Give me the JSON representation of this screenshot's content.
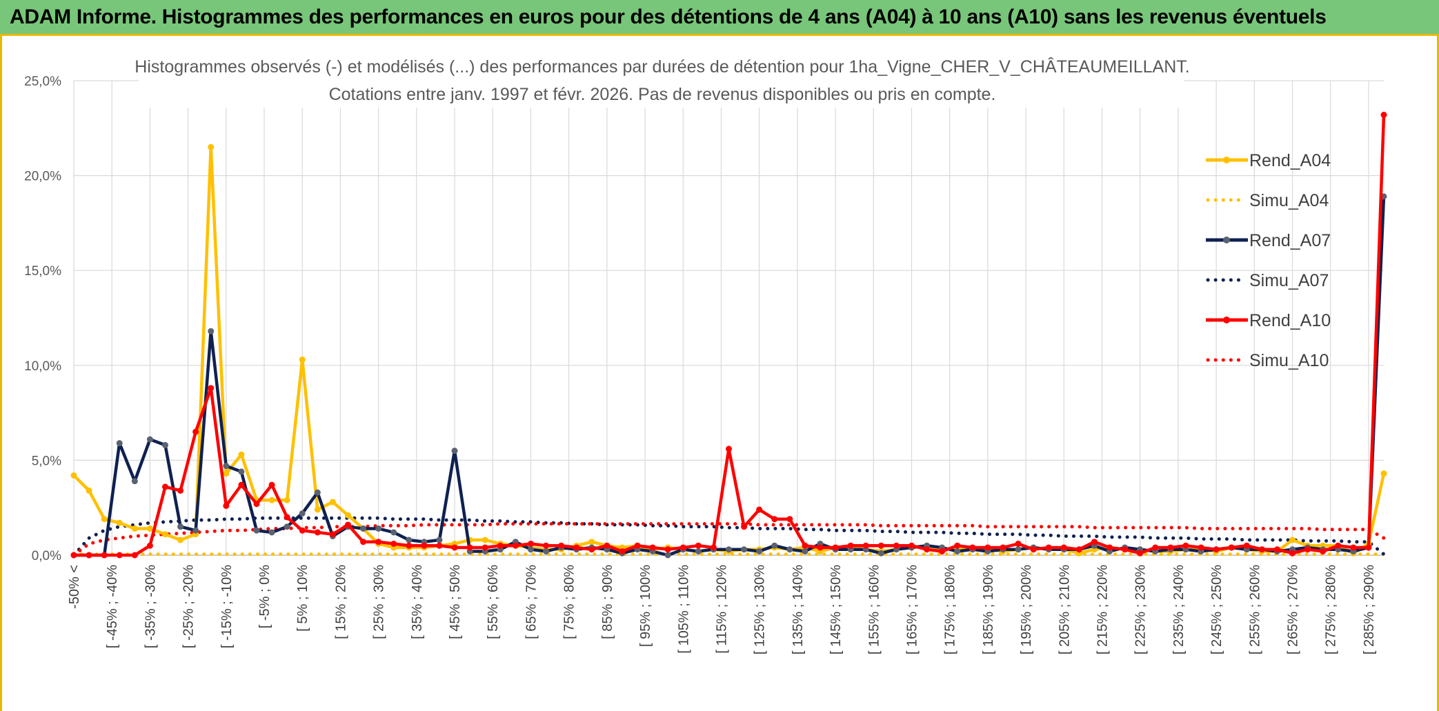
{
  "header": {
    "title": "ADAM Informe. Histogrammes des performances en euros pour des détentions de 4 ans (A04) à 10 ans (A10) sans les revenus éventuels"
  },
  "colors": {
    "header_bg": "#78c679",
    "border_accent": "#e6b800",
    "rend_a04": "#ffc000",
    "simu_a04": "#ffc000",
    "rend_a07": "#0f2150",
    "simu_a07": "#0f2150",
    "rend_a10": "#ff0000",
    "simu_a10": "#ff0000"
  },
  "chart_data": {
    "type": "line",
    "title": "Histogrammes observés (-) et modélisés (...) des performances par durées de détention pour 1ha_Vigne_CHER_V_CHÂTEAUMEILLANT.",
    "subtitle": "Cotations entre janv. 1997 et févr. 2026. Pas de revenus disponibles ou pris en compte.",
    "xlabel": "",
    "ylabel": "",
    "ylim": [
      0,
      25
    ],
    "y_ticks": [
      "0,0%",
      "5,0%",
      "10,0%",
      "15,0%",
      "20,0%",
      "25,0%"
    ],
    "grid": true,
    "legend_position": "right",
    "x_tick_labels": [
      "-50% <",
      "[ -45% ; -40%",
      "[ -35% ; -30%",
      "[ -25% ; -20%",
      "[ -15% ; -10%",
      "[ -5% ; 0%",
      "[ 5% ; 10%",
      "[ 15% ; 20%",
      "[ 25% ; 30%",
      "[ 35% ; 40%",
      "[ 45% ; 50%",
      "[ 55% ; 60%",
      "[ 65% ; 70%",
      "[ 75% ; 80%",
      "[ 85% ; 90%",
      "[ 95% ; 100%",
      "[ 105% ; 110%",
      "[ 115% ; 120%",
      "[ 125% ; 130%",
      "[ 135% ; 140%",
      "[ 145% ; 150%",
      "[ 155% ; 160%",
      "[ 165% ; 170%",
      "[ 175% ; 180%",
      "[ 185% ; 190%",
      "[ 195% ; 200%",
      "[ 205% ; 210%",
      "[ 215% ; 220%",
      "[ 225% ; 230%",
      "[ 235% ; 240%",
      "[ 245% ; 250%",
      "[ 255% ; 260%",
      "[ 265% ; 270%",
      "[ 275% ; 280%",
      "[ 285% ; 290%"
    ],
    "series": [
      {
        "name": "Rend_A04",
        "style": "solid",
        "color": "#ffc000",
        "values": [
          4.2,
          3.4,
          1.9,
          1.7,
          1.4,
          1.4,
          1.1,
          0.8,
          1.1,
          21.5,
          4.3,
          5.3,
          2.9,
          2.9,
          2.9,
          10.3,
          2.4,
          2.8,
          2.1,
          1.4,
          0.6,
          0.4,
          0.4,
          0.4,
          0.5,
          0.6,
          0.8,
          0.8,
          0.6,
          0.5,
          0.4,
          0.3,
          0.3,
          0.5,
          0.7,
          0.5,
          0.4,
          0.5,
          0.3,
          0.4,
          0.3,
          0.2,
          0.3,
          0.2,
          0.3,
          0.3,
          0.4,
          0.3,
          0.4,
          0.2,
          0.4,
          0.4,
          0.3,
          0.2,
          0.3,
          0.4,
          0.5,
          0.3,
          0.4,
          0.3,
          0.3,
          0.2,
          0.3,
          0.4,
          0.3,
          0.3,
          0.1,
          0.3,
          0.4,
          0.3,
          0.3,
          0.2,
          0.2,
          0.3,
          0.3,
          0.2,
          0.4,
          0.3,
          0.2,
          0.2,
          0.8,
          0.5,
          0.5,
          0.5,
          0.1,
          0.6,
          4.3
        ]
      },
      {
        "name": "Simu_A04",
        "style": "dotted",
        "color": "#ffc000",
        "values": [
          0.05,
          0.05,
          0.05,
          0.05,
          0.05,
          0.05,
          0.05,
          0.05,
          0.05,
          0.05,
          0.05,
          0.05,
          0.05,
          0.05,
          0.05,
          0.05,
          0.05,
          0.05,
          0.05,
          0.05,
          0.05,
          0.05,
          0.05,
          0.05,
          0.05,
          0.05,
          0.05,
          0.05,
          0.05,
          0.05,
          0.05,
          0.05,
          0.05,
          0.05,
          0.05,
          0.05,
          0.05,
          0.05,
          0.05,
          0.05,
          0.05,
          0.05,
          0.05,
          0.05,
          0.05,
          0.05,
          0.05,
          0.05,
          0.05,
          0.05,
          0.05,
          0.05,
          0.05,
          0.05,
          0.05,
          0.05,
          0.05,
          0.05,
          0.05,
          0.05,
          0.05,
          0.05,
          0.05,
          0.05,
          0.05,
          0.05,
          0.05,
          0.05,
          0.05,
          0.05,
          0.05,
          0.05,
          0.05,
          0.05,
          0.05,
          0.05,
          0.05,
          0.05,
          0.05,
          0.05,
          0.05,
          0.05,
          0.05,
          0.05,
          0.05,
          0.05,
          0.05
        ]
      },
      {
        "name": "Rend_A07",
        "style": "solid",
        "color": "#0f2150",
        "values": [
          0.0,
          0.0,
          0.0,
          5.9,
          3.9,
          6.1,
          5.8,
          1.5,
          1.3,
          11.8,
          4.7,
          4.4,
          1.3,
          1.2,
          1.5,
          2.2,
          3.3,
          1.0,
          1.5,
          1.4,
          1.4,
          1.2,
          0.8,
          0.7,
          0.8,
          5.5,
          0.2,
          0.2,
          0.3,
          0.7,
          0.3,
          0.2,
          0.4,
          0.3,
          0.4,
          0.3,
          0.1,
          0.3,
          0.2,
          0.0,
          0.3,
          0.2,
          0.3,
          0.3,
          0.3,
          0.2,
          0.5,
          0.3,
          0.2,
          0.6,
          0.3,
          0.3,
          0.3,
          0.1,
          0.3,
          0.4,
          0.5,
          0.4,
          0.2,
          0.3,
          0.2,
          0.3,
          0.3,
          0.4,
          0.3,
          0.3,
          0.3,
          0.5,
          0.2,
          0.4,
          0.3,
          0.2,
          0.3,
          0.3,
          0.2,
          0.3,
          0.4,
          0.3,
          0.3,
          0.2,
          0.3,
          0.4,
          0.3,
          0.3,
          0.2,
          0.4,
          18.9
        ]
      },
      {
        "name": "Simu_A07",
        "style": "dotted",
        "color": "#0f2150",
        "values": [
          0.0,
          0.9,
          1.3,
          1.5,
          1.6,
          1.7,
          1.75,
          1.8,
          1.85,
          1.85,
          1.9,
          1.9,
          1.95,
          1.95,
          1.95,
          1.95,
          1.95,
          1.95,
          1.95,
          1.95,
          1.95,
          1.9,
          1.9,
          1.9,
          1.85,
          1.85,
          1.85,
          1.8,
          1.8,
          1.75,
          1.75,
          1.7,
          1.7,
          1.65,
          1.65,
          1.6,
          1.6,
          1.6,
          1.55,
          1.55,
          1.5,
          1.5,
          1.5,
          1.45,
          1.45,
          1.4,
          1.4,
          1.4,
          1.35,
          1.35,
          1.3,
          1.3,
          1.3,
          1.25,
          1.25,
          1.2,
          1.2,
          1.2,
          1.15,
          1.15,
          1.1,
          1.1,
          1.1,
          1.05,
          1.05,
          1.0,
          1.0,
          1.0,
          0.95,
          0.95,
          0.95,
          0.9,
          0.9,
          0.9,
          0.85,
          0.85,
          0.85,
          0.8,
          0.8,
          0.8,
          0.8,
          0.75,
          0.75,
          0.75,
          0.7,
          0.7,
          0.05
        ]
      },
      {
        "name": "Rend_A10",
        "style": "solid",
        "color": "#ff0000",
        "values": [
          0.0,
          0.0,
          0.0,
          0.0,
          0.0,
          0.5,
          3.6,
          3.4,
          6.5,
          8.8,
          2.6,
          3.7,
          2.7,
          3.7,
          2.0,
          1.3,
          1.2,
          1.1,
          1.6,
          0.7,
          0.7,
          0.6,
          0.5,
          0.5,
          0.5,
          0.4,
          0.4,
          0.4,
          0.5,
          0.5,
          0.6,
          0.5,
          0.5,
          0.4,
          0.3,
          0.5,
          0.2,
          0.5,
          0.4,
          0.3,
          0.4,
          0.5,
          0.4,
          5.6,
          1.5,
          2.4,
          1.9,
          1.9,
          0.5,
          0.4,
          0.4,
          0.5,
          0.5,
          0.5,
          0.5,
          0.5,
          0.3,
          0.2,
          0.5,
          0.4,
          0.4,
          0.4,
          0.6,
          0.3,
          0.4,
          0.4,
          0.3,
          0.7,
          0.4,
          0.3,
          0.1,
          0.4,
          0.4,
          0.5,
          0.4,
          0.3,
          0.4,
          0.5,
          0.3,
          0.3,
          0.1,
          0.3,
          0.2,
          0.5,
          0.4,
          0.4,
          23.2
        ]
      },
      {
        "name": "Simu_A10",
        "style": "dotted",
        "color": "#ff0000",
        "values": [
          0.0,
          0.6,
          0.8,
          0.9,
          1.0,
          1.05,
          1.1,
          1.15,
          1.2,
          1.25,
          1.3,
          1.3,
          1.35,
          1.4,
          1.4,
          1.45,
          1.45,
          1.5,
          1.5,
          1.5,
          1.55,
          1.55,
          1.55,
          1.6,
          1.6,
          1.6,
          1.6,
          1.6,
          1.65,
          1.65,
          1.65,
          1.65,
          1.65,
          1.65,
          1.65,
          1.65,
          1.65,
          1.65,
          1.65,
          1.65,
          1.65,
          1.65,
          1.65,
          1.65,
          1.65,
          1.6,
          1.6,
          1.6,
          1.6,
          1.6,
          1.6,
          1.6,
          1.6,
          1.55,
          1.55,
          1.55,
          1.55,
          1.55,
          1.55,
          1.55,
          1.5,
          1.5,
          1.5,
          1.5,
          1.5,
          1.5,
          1.5,
          1.45,
          1.45,
          1.45,
          1.45,
          1.45,
          1.45,
          1.45,
          1.4,
          1.4,
          1.4,
          1.4,
          1.4,
          1.4,
          1.4,
          1.4,
          1.35,
          1.35,
          1.35,
          1.35,
          0.9
        ]
      }
    ]
  }
}
